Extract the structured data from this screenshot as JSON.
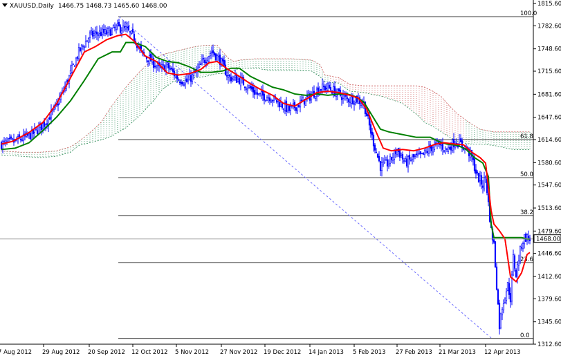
{
  "header": {
    "symbol": "XAUUSD,Daily",
    "ohlc": "1466.75 1468.73 1465.60 1468.00"
  },
  "chart_data": {
    "type": "candlestick",
    "symbol": "XAUUSD",
    "timeframe": "Daily",
    "ylim": [
      1312.6,
      1815.6
    ],
    "y_ticks": [
      1815.6,
      1782.6,
      1748.6,
      1715.6,
      1681.6,
      1647.6,
      1614.6,
      1580.6,
      1547.6,
      1513.6,
      1479.6,
      1446.6,
      1412.6,
      1379.6,
      1345.6,
      1312.6
    ],
    "y_tick_labels": [
      "1815.60",
      "1782.60",
      "1748.60",
      "1715.60",
      "1681.60",
      "1647.60",
      "1614.60",
      "1580.60",
      "1547.60",
      "1513.60",
      "1479.60",
      "1446.60",
      "1412.60",
      "1379.60",
      "1345.60",
      "1312.60"
    ],
    "x_labels": [
      "7 Aug 2012",
      "29 Aug 2012",
      "20 Sep 2012",
      "12 Oct 2012",
      "5 Nov 2012",
      "27 Nov 2012",
      "19 Dec 2012",
      "14 Jan 2013",
      "5 Feb 2013",
      "27 Feb 2013",
      "21 Mar 2013",
      "12 Apr 2013"
    ],
    "current_price": 1468.0,
    "current_price_label": "1468.00",
    "fibonacci": {
      "high": 1796.0,
      "low": 1321.0,
      "levels": [
        {
          "ratio": 100.0,
          "label": "100.0",
          "value": 1796.0
        },
        {
          "ratio": 61.8,
          "label": "61.8",
          "value": 1614.6
        },
        {
          "ratio": 50.0,
          "label": "50.0",
          "value": 1558.5
        },
        {
          "ratio": 38.2,
          "label": "38.2",
          "value": 1502.5
        },
        {
          "ratio": 23.6,
          "label": "23.6",
          "value": 1433.1
        },
        {
          "ratio": 0.0,
          "label": "0.0",
          "value": 1321.0
        }
      ]
    },
    "close_anchors": [
      [
        0,
        1608
      ],
      [
        10,
        1612
      ],
      [
        22,
        1622
      ],
      [
        32,
        1640
      ],
      [
        40,
        1665
      ],
      [
        48,
        1702
      ],
      [
        56,
        1744
      ],
      [
        64,
        1768
      ],
      [
        70,
        1772
      ],
      [
        76,
        1772
      ],
      [
        84,
        1780
      ],
      [
        90,
        1777
      ],
      [
        96,
        1765
      ],
      [
        102,
        1740
      ],
      [
        108,
        1732
      ],
      [
        114,
        1719
      ],
      [
        120,
        1723
      ],
      [
        128,
        1704
      ],
      [
        134,
        1700
      ],
      [
        140,
        1712
      ],
      [
        146,
        1730
      ],
      [
        152,
        1745
      ],
      [
        158,
        1732
      ],
      [
        164,
        1707
      ],
      [
        172,
        1703
      ],
      [
        180,
        1690
      ],
      [
        186,
        1680
      ],
      [
        194,
        1678
      ],
      [
        200,
        1670
      ],
      [
        208,
        1658
      ],
      [
        216,
        1668
      ],
      [
        224,
        1680
      ],
      [
        230,
        1690
      ],
      [
        236,
        1692
      ],
      [
        242,
        1684
      ],
      [
        250,
        1674
      ],
      [
        256,
        1675
      ],
      [
        262,
        1668
      ],
      [
        268,
        1618
      ],
      [
        274,
        1575
      ],
      [
        280,
        1580
      ],
      [
        286,
        1600
      ],
      [
        292,
        1580
      ],
      [
        298,
        1588
      ],
      [
        304,
        1590
      ],
      [
        310,
        1602
      ],
      [
        316,
        1608
      ],
      [
        322,
        1600
      ],
      [
        328,
        1612
      ],
      [
        332,
        1608
      ],
      [
        336,
        1602
      ],
      [
        340,
        1588
      ],
      [
        344,
        1560
      ],
      [
        348,
        1548
      ],
      [
        350,
        1560
      ],
      [
        352,
        1520
      ],
      [
        354,
        1480
      ],
      [
        356,
        1460
      ],
      [
        358,
        1400
      ],
      [
        360,
        1340
      ],
      [
        362,
        1368
      ],
      [
        364,
        1385
      ],
      [
        366,
        1400
      ],
      [
        368,
        1380
      ],
      [
        370,
        1440
      ],
      [
        372,
        1415
      ],
      [
        374,
        1440
      ],
      [
        376,
        1460
      ],
      [
        378,
        1470
      ],
      [
        380,
        1470
      ],
      [
        382,
        1468
      ]
    ],
    "red_line": [
      [
        0,
        1608
      ],
      [
        8,
        1612
      ],
      [
        20,
        1625
      ],
      [
        30,
        1640
      ],
      [
        40,
        1668
      ],
      [
        50,
        1706
      ],
      [
        60,
        1744
      ],
      [
        68,
        1752
      ],
      [
        76,
        1762
      ],
      [
        84,
        1768
      ],
      [
        90,
        1770
      ],
      [
        96,
        1760
      ],
      [
        104,
        1738
      ],
      [
        112,
        1730
      ],
      [
        120,
        1713
      ],
      [
        128,
        1710
      ],
      [
        136,
        1712
      ],
      [
        144,
        1718
      ],
      [
        150,
        1728
      ],
      [
        156,
        1730
      ],
      [
        164,
        1718
      ],
      [
        172,
        1708
      ],
      [
        180,
        1697
      ],
      [
        188,
        1688
      ],
      [
        196,
        1680
      ],
      [
        204,
        1668
      ],
      [
        212,
        1664
      ],
      [
        220,
        1674
      ],
      [
        228,
        1684
      ],
      [
        236,
        1686
      ],
      [
        244,
        1684
      ],
      [
        252,
        1680
      ],
      [
        258,
        1676
      ],
      [
        264,
        1660
      ],
      [
        270,
        1630
      ],
      [
        276,
        1602
      ],
      [
        282,
        1598
      ],
      [
        290,
        1600
      ],
      [
        298,
        1598
      ],
      [
        306,
        1602
      ],
      [
        314,
        1608
      ],
      [
        320,
        1610
      ],
      [
        328,
        1608
      ],
      [
        334,
        1607
      ],
      [
        340,
        1596
      ],
      [
        346,
        1588
      ],
      [
        350,
        1580
      ],
      [
        354,
        1510
      ],
      [
        356,
        1490
      ],
      [
        360,
        1480
      ],
      [
        364,
        1468
      ],
      [
        368,
        1412
      ],
      [
        372,
        1405
      ],
      [
        376,
        1418
      ],
      [
        380,
        1445
      ],
      [
        382,
        1448
      ]
    ],
    "green_line": [
      [
        0,
        1600
      ],
      [
        10,
        1602
      ],
      [
        20,
        1610
      ],
      [
        30,
        1628
      ],
      [
        40,
        1648
      ],
      [
        50,
        1672
      ],
      [
        60,
        1702
      ],
      [
        70,
        1734
      ],
      [
        80,
        1744
      ],
      [
        86,
        1744
      ],
      [
        90,
        1758
      ],
      [
        96,
        1758
      ],
      [
        104,
        1752
      ],
      [
        112,
        1736
      ],
      [
        120,
        1730
      ],
      [
        128,
        1728
      ],
      [
        136,
        1722
      ],
      [
        144,
        1714
      ],
      [
        152,
        1714
      ],
      [
        160,
        1716
      ],
      [
        166,
        1720
      ],
      [
        172,
        1720
      ],
      [
        180,
        1708
      ],
      [
        188,
        1700
      ],
      [
        196,
        1692
      ],
      [
        204,
        1688
      ],
      [
        212,
        1682
      ],
      [
        220,
        1680
      ],
      [
        228,
        1682
      ],
      [
        236,
        1680
      ],
      [
        244,
        1682
      ],
      [
        250,
        1682
      ],
      [
        256,
        1678
      ],
      [
        262,
        1670
      ],
      [
        268,
        1650
      ],
      [
        274,
        1630
      ],
      [
        280,
        1626
      ],
      [
        290,
        1622
      ],
      [
        300,
        1618
      ],
      [
        310,
        1618
      ],
      [
        316,
        1612
      ],
      [
        322,
        1608
      ],
      [
        330,
        1606
      ],
      [
        336,
        1600
      ],
      [
        342,
        1588
      ],
      [
        348,
        1580
      ],
      [
        352,
        1560
      ],
      [
        354,
        1490
      ],
      [
        356,
        1470
      ],
      [
        362,
        1470
      ],
      [
        370,
        1470
      ],
      [
        376,
        1470
      ],
      [
        380,
        1468
      ],
      [
        382,
        1468
      ]
    ],
    "cloud_top": [
      [
        0,
        1598
      ],
      [
        14,
        1596
      ],
      [
        28,
        1596
      ],
      [
        40,
        1598
      ],
      [
        50,
        1604
      ],
      [
        56,
        1612
      ],
      [
        64,
        1625
      ],
      [
        72,
        1640
      ],
      [
        80,
        1665
      ],
      [
        90,
        1692
      ],
      [
        100,
        1715
      ],
      [
        110,
        1734
      ],
      [
        116,
        1740
      ],
      [
        124,
        1744
      ],
      [
        132,
        1748
      ],
      [
        140,
        1752
      ],
      [
        148,
        1754
      ],
      [
        156,
        1754
      ],
      [
        160,
        1744
      ],
      [
        164,
        1735
      ],
      [
        168,
        1730
      ],
      [
        172,
        1732
      ],
      [
        184,
        1734
      ],
      [
        196,
        1734
      ],
      [
        210,
        1734
      ],
      [
        224,
        1732
      ],
      [
        230,
        1726
      ],
      [
        234,
        1710
      ],
      [
        244,
        1706
      ],
      [
        252,
        1696
      ],
      [
        262,
        1694
      ],
      [
        276,
        1694
      ],
      [
        290,
        1694
      ],
      [
        300,
        1694
      ],
      [
        306,
        1692
      ],
      [
        312,
        1686
      ],
      [
        318,
        1678
      ],
      [
        324,
        1664
      ],
      [
        330,
        1652
      ],
      [
        338,
        1640
      ],
      [
        346,
        1630
      ],
      [
        356,
        1626
      ],
      [
        370,
        1626
      ],
      [
        382,
        1626
      ]
    ],
    "cloud_bottom": [
      [
        0,
        1592
      ],
      [
        14,
        1590
      ],
      [
        28,
        1588
      ],
      [
        40,
        1590
      ],
      [
        50,
        1596
      ],
      [
        56,
        1606
      ],
      [
        64,
        1610
      ],
      [
        72,
        1614
      ],
      [
        80,
        1620
      ],
      [
        90,
        1632
      ],
      [
        100,
        1650
      ],
      [
        110,
        1672
      ],
      [
        116,
        1688
      ],
      [
        124,
        1700
      ],
      [
        132,
        1702
      ],
      [
        140,
        1706
      ],
      [
        148,
        1708
      ],
      [
        156,
        1712
      ],
      [
        160,
        1712
      ],
      [
        164,
        1714
      ],
      [
        168,
        1716
      ],
      [
        172,
        1720
      ],
      [
        184,
        1720
      ],
      [
        196,
        1716
      ],
      [
        210,
        1716
      ],
      [
        224,
        1716
      ],
      [
        230,
        1708
      ],
      [
        234,
        1700
      ],
      [
        244,
        1698
      ],
      [
        252,
        1686
      ],
      [
        262,
        1684
      ],
      [
        276,
        1678
      ],
      [
        290,
        1668
      ],
      [
        300,
        1652
      ],
      [
        306,
        1640
      ],
      [
        312,
        1634
      ],
      [
        318,
        1626
      ],
      [
        324,
        1618
      ],
      [
        330,
        1612
      ],
      [
        338,
        1608
      ],
      [
        346,
        1608
      ],
      [
        356,
        1606
      ],
      [
        370,
        1600
      ],
      [
        382,
        1600
      ]
    ],
    "colors": {
      "candle": "#0000ff",
      "tenkan": "#ff0000",
      "kijun": "#008000",
      "cloud_bull": "#2e8b57",
      "cloud_bear": "#cd5c5c",
      "fib": "#000000",
      "trend": "#6a6aff"
    },
    "grid": false,
    "legend": "none"
  }
}
